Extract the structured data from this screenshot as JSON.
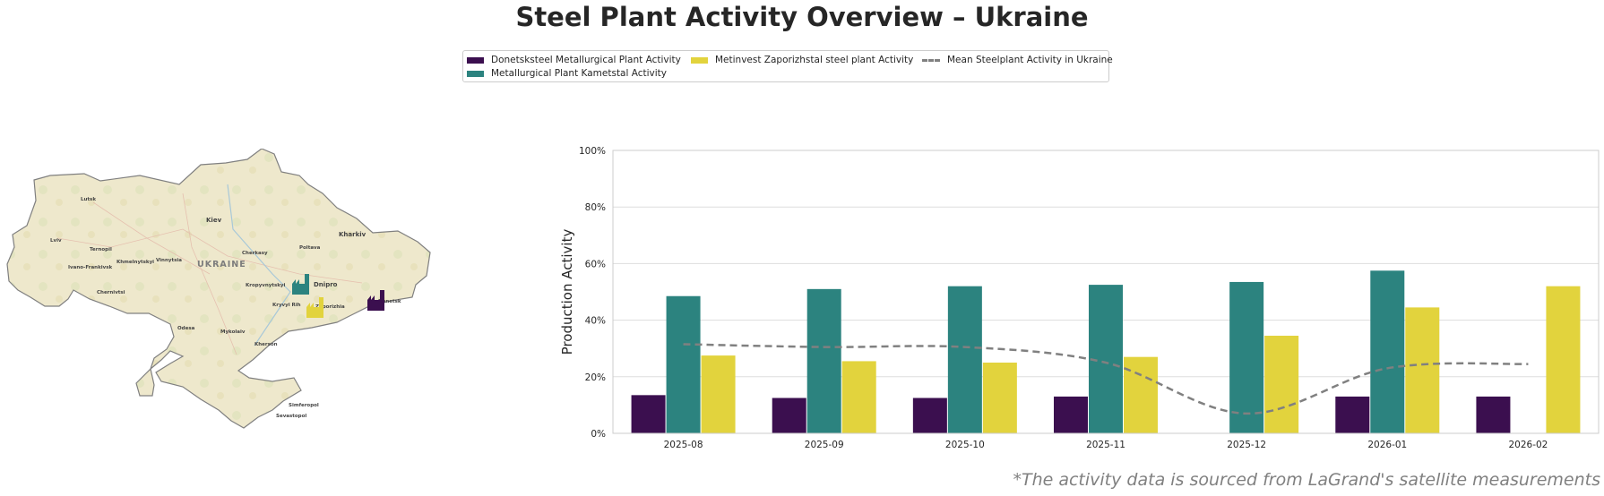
{
  "title": "Steel Plant Activity Overview – Ukraine",
  "footnote": "*The activity data is sourced from LaGrand's satellite measurements",
  "legend": {
    "items": [
      {
        "label": "Donetsksteel Metallurgical Plant Activity",
        "color": "#3b0f4f",
        "kind": "bar"
      },
      {
        "label": "Metallurgical Plant Kametstal Activity",
        "color": "#2c837f",
        "kind": "bar"
      },
      {
        "label": "Metinvest Zaporizhstal steel plant Activity",
        "color": "#e2d33d",
        "kind": "bar"
      },
      {
        "label": "Mean Steelplant Activity in Ukraine",
        "color": "#808080",
        "kind": "line"
      }
    ]
  },
  "map": {
    "country_label": "UKRAINE",
    "cities": [
      "Lutsk",
      "Lviv",
      "Ternopil",
      "Ivano-Frankivsk",
      "Khmelnytskyi",
      "Vinnytsia",
      "Kiev",
      "Cherkasy",
      "Poltava",
      "Kharkiv",
      "Chernivtsi",
      "Kropyvnytskyi",
      "Dnipro",
      "Kryvyi Rih",
      "Zaporizhia",
      "Donetsk",
      "Mykolaiv",
      "Kherson",
      "Odesa",
      "Simferopol",
      "Sevastopol"
    ],
    "markers": [
      {
        "plant": "Metallurgical Plant Kametstal",
        "color": "#2c837f"
      },
      {
        "plant": "Metinvest Zaporizhstal steel plant",
        "color": "#e2d33d"
      },
      {
        "plant": "Donetsksteel Metallurgical Plant",
        "color": "#3b0f4f"
      }
    ]
  },
  "chart_data": {
    "type": "bar",
    "title": "Steel Plant Activity Overview – Ukraine",
    "xlabel": "",
    "ylabel": "Production Activity",
    "ylim": [
      0,
      100
    ],
    "yticks": [
      "0%",
      "20%",
      "40%",
      "60%",
      "80%",
      "100%"
    ],
    "grid": true,
    "legend_position": "top-center",
    "categories": [
      "2025-08",
      "2025-09",
      "2025-10",
      "2025-11",
      "2025-12",
      "2026-01",
      "2026-02"
    ],
    "series": [
      {
        "name": "Donetsksteel Metallurgical Plant Activity",
        "kind": "bar",
        "color": "#3b0f4f",
        "values": [
          13.5,
          12.5,
          12.5,
          13,
          null,
          13,
          13
        ]
      },
      {
        "name": "Metallurgical Plant Kametstal Activity",
        "kind": "bar",
        "color": "#2c837f",
        "values": [
          48.5,
          51,
          52,
          52.5,
          53.5,
          57.5,
          null
        ]
      },
      {
        "name": "Metinvest Zaporizhstal steel plant Activity",
        "kind": "bar",
        "color": "#e2d33d",
        "values": [
          27.5,
          25.5,
          25,
          27,
          34.5,
          44.5,
          52
        ]
      },
      {
        "name": "Mean Steelplant Activity in Ukraine",
        "kind": "line",
        "color": "#808080",
        "values": [
          31.5,
          30.5,
          30.5,
          25,
          7,
          23,
          24.5
        ]
      }
    ]
  }
}
